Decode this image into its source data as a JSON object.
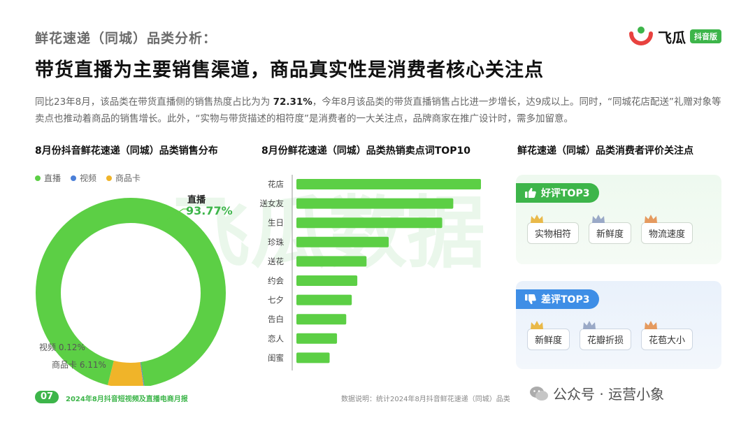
{
  "header": {
    "subtitle": "鲜花速递（同城）品类分析：",
    "title": "带货直播为主要销售渠道，商品真实性是消费者核心关注点",
    "logo_text": "飞瓜",
    "logo_tag": "抖音版"
  },
  "description": {
    "part1": "同比23年8月，该品类在带货直播侧的销售热度占比为为 ",
    "highlight": "72.31%",
    "part2": "，今年8月该品类的带货直播销售占比进一步增长，达9成以上。同时，“同城花店配送”礼赠对象等卖点也推动着商品的销售增长。此外，“实物与带货描述的相符度”是消费者的一大关注点，品牌商家在推广设计时，需多加留意。"
  },
  "watermark": "飞瓜数据",
  "donut_section": {
    "title": "8月份抖音鲜花速递（同城）品类销售分布",
    "legend": [
      {
        "label": "直播",
        "color": "#5ccf45"
      },
      {
        "label": "视频",
        "color": "#4a7fd8"
      },
      {
        "label": "商品卡",
        "color": "#f0b429"
      }
    ],
    "main_label_name": "直播",
    "main_label_value": "93.77%",
    "label_video": "视频 0.12%",
    "label_card": "商品卡 6.11%"
  },
  "bar_section": {
    "title": "8月份鲜花速递（同城）品类热销卖点词TOP10"
  },
  "review_section": {
    "title": "鲜花速递（同城）品类消费者评价关注点",
    "good_label": "好评TOP3",
    "good_tags": [
      "实物相符",
      "新鲜度",
      "物流速度"
    ],
    "bad_label": "差评TOP3",
    "bad_tags": [
      "新鲜度",
      "花瓣折损",
      "花苞大小"
    ],
    "crown_colors": [
      "#e9b949",
      "#9aa9c7",
      "#e59a5f"
    ]
  },
  "footer": {
    "page_number": "07",
    "report_name": "2024年8月抖音短视频及直播电商月报",
    "note": "数据说明：统计2024年8月抖音鲜花速递（同城）品类",
    "wechat": "公众号 · 运营小象"
  },
  "chart_data": [
    {
      "type": "pie",
      "title": "8月份抖音鲜花速递（同城）品类销售分布",
      "donut": true,
      "series": [
        {
          "name": "直播",
          "value": 93.77,
          "color": "#5ccf45"
        },
        {
          "name": "视频",
          "value": 0.12,
          "color": "#4a7fd8"
        },
        {
          "name": "商品卡",
          "value": 6.11,
          "color": "#f0b429"
        }
      ]
    },
    {
      "type": "bar",
      "orientation": "horizontal",
      "title": "8月份鲜花速递（同城）品类热销卖点词TOP10",
      "categories": [
        "花店",
        "送女友",
        "生日",
        "珍珠",
        "送花",
        "约会",
        "七夕",
        "告白",
        "恋人",
        "闺蜜"
      ],
      "values": [
        100,
        85,
        79,
        50,
        38,
        33,
        30,
        27,
        22,
        18
      ],
      "color": "#5ccf45",
      "value_labels_shown": false
    }
  ]
}
